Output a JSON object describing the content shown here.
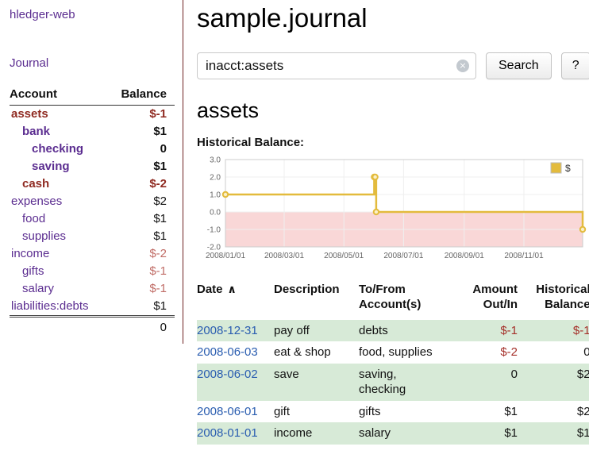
{
  "app": {
    "brand": "hledger-web"
  },
  "colors": {
    "link_purple": "#5b2d90",
    "selected_maroon": "#8f2a21",
    "negative_red": "#a5302a",
    "negative_soft": "#c06c66",
    "row_stripe_green": "#d7ead7",
    "date_link_blue": "#2a5db0",
    "sidebar_divider": "#6e2222"
  },
  "sidebar": {
    "journal_link": "Journal",
    "accounts": {
      "col_account": "Account",
      "col_balance": "Balance",
      "rows": [
        {
          "name": "assets",
          "indent": 0,
          "balance": "$-1",
          "name_style": "selected",
          "balance_style": "neg-strong",
          "bold": true
        },
        {
          "name": "bank",
          "indent": 1,
          "balance": "$1",
          "name_style": "link",
          "balance_style": "pos",
          "bold": true
        },
        {
          "name": "checking",
          "indent": 2,
          "balance": "0",
          "name_style": "link",
          "balance_style": "pos",
          "bold": true
        },
        {
          "name": "saving",
          "indent": 2,
          "balance": "$1",
          "name_style": "link",
          "balance_style": "pos",
          "bold": true
        },
        {
          "name": "cash",
          "indent": 1,
          "balance": "$-2",
          "name_style": "selected",
          "balance_style": "neg-strong",
          "bold": true
        },
        {
          "name": "expenses",
          "indent": 0,
          "balance": "$2",
          "name_style": "link",
          "balance_style": "pos",
          "bold": false
        },
        {
          "name": "food",
          "indent": 1,
          "balance": "$1",
          "name_style": "link",
          "balance_style": "pos",
          "bold": false
        },
        {
          "name": "supplies",
          "indent": 1,
          "balance": "$1",
          "name_style": "link",
          "balance_style": "pos",
          "bold": false
        },
        {
          "name": "income",
          "indent": 0,
          "balance": "$-2",
          "name_style": "link",
          "balance_style": "neg-soft",
          "bold": false
        },
        {
          "name": "gifts",
          "indent": 1,
          "balance": "$-1",
          "name_style": "link",
          "balance_style": "neg-soft",
          "bold": false
        },
        {
          "name": "salary",
          "indent": 1,
          "balance": "$-1",
          "name_style": "link",
          "balance_style": "neg-soft",
          "bold": false
        },
        {
          "name": "liabilities:debts",
          "indent": 0,
          "balance": "$1",
          "name_style": "link",
          "balance_style": "pos",
          "bold": false
        }
      ],
      "total": "0"
    }
  },
  "header": {
    "title": "sample.journal"
  },
  "search": {
    "value": "inacct:assets",
    "clear_icon": "×",
    "search_button": "Search",
    "help_button": "?"
  },
  "content": {
    "account_heading": "assets",
    "chart_label": "Historical Balance:"
  },
  "chart_data": {
    "type": "line",
    "step": true,
    "title": "Historical Balance",
    "xlabel": "",
    "ylabel": "",
    "ylim": [
      -2,
      3
    ],
    "ytick_values": [
      3,
      2,
      1,
      0,
      -1,
      -2
    ],
    "yticks": [
      "3.0",
      "2.0",
      "1.0",
      "0.0",
      "-1.0",
      "-2.0"
    ],
    "xticks": [
      "2008/01/01",
      "2008/03/01",
      "2008/05/01",
      "2008/07/01",
      "2008/09/01",
      "2008/11/01"
    ],
    "series": [
      {
        "name": "$",
        "x": [
          "2008/01/01",
          "2008/06/01",
          "2008/06/02",
          "2008/06/03",
          "2008/12/31"
        ],
        "values": [
          1,
          2,
          2,
          0,
          -1
        ]
      }
    ],
    "legend": {
      "position": "top-right",
      "entries": [
        "$"
      ]
    },
    "colors": {
      "line": "#e3bb3d",
      "marker_fill": "#fbf0c8",
      "negative_region": "#f9d7d7",
      "grid": "#efefef",
      "border": "#cccccc",
      "tick_text": "#666666"
    }
  },
  "register": {
    "headers": [
      {
        "label": "Date",
        "sort": "∧"
      },
      {
        "label": "Description"
      },
      {
        "label": "To/From Account(s)"
      },
      {
        "label": "Amount Out/In"
      },
      {
        "label": "Historical Balance"
      }
    ],
    "rows": [
      {
        "date": "2008-12-31",
        "description": "pay off",
        "accounts": "debts",
        "amount": "$-1",
        "amount_negative": true,
        "balance": "$-1",
        "balance_negative": true,
        "shaded": true
      },
      {
        "date": "2008-06-03",
        "description": "eat & shop",
        "accounts": "food, supplies",
        "amount": "$-2",
        "amount_negative": true,
        "balance": "0",
        "balance_negative": false,
        "shaded": false
      },
      {
        "date": "2008-06-02",
        "description": "save",
        "accounts": "saving, checking",
        "amount": "0",
        "amount_negative": false,
        "balance": "$2",
        "balance_negative": false,
        "shaded": true
      },
      {
        "date": "2008-06-01",
        "description": "gift",
        "accounts": "gifts",
        "amount": "$1",
        "amount_negative": false,
        "balance": "$2",
        "balance_negative": false,
        "shaded": false
      },
      {
        "date": "2008-01-01",
        "description": "income",
        "accounts": "salary",
        "amount": "$1",
        "amount_negative": false,
        "balance": "$1",
        "balance_negative": false,
        "shaded": true
      }
    ]
  }
}
